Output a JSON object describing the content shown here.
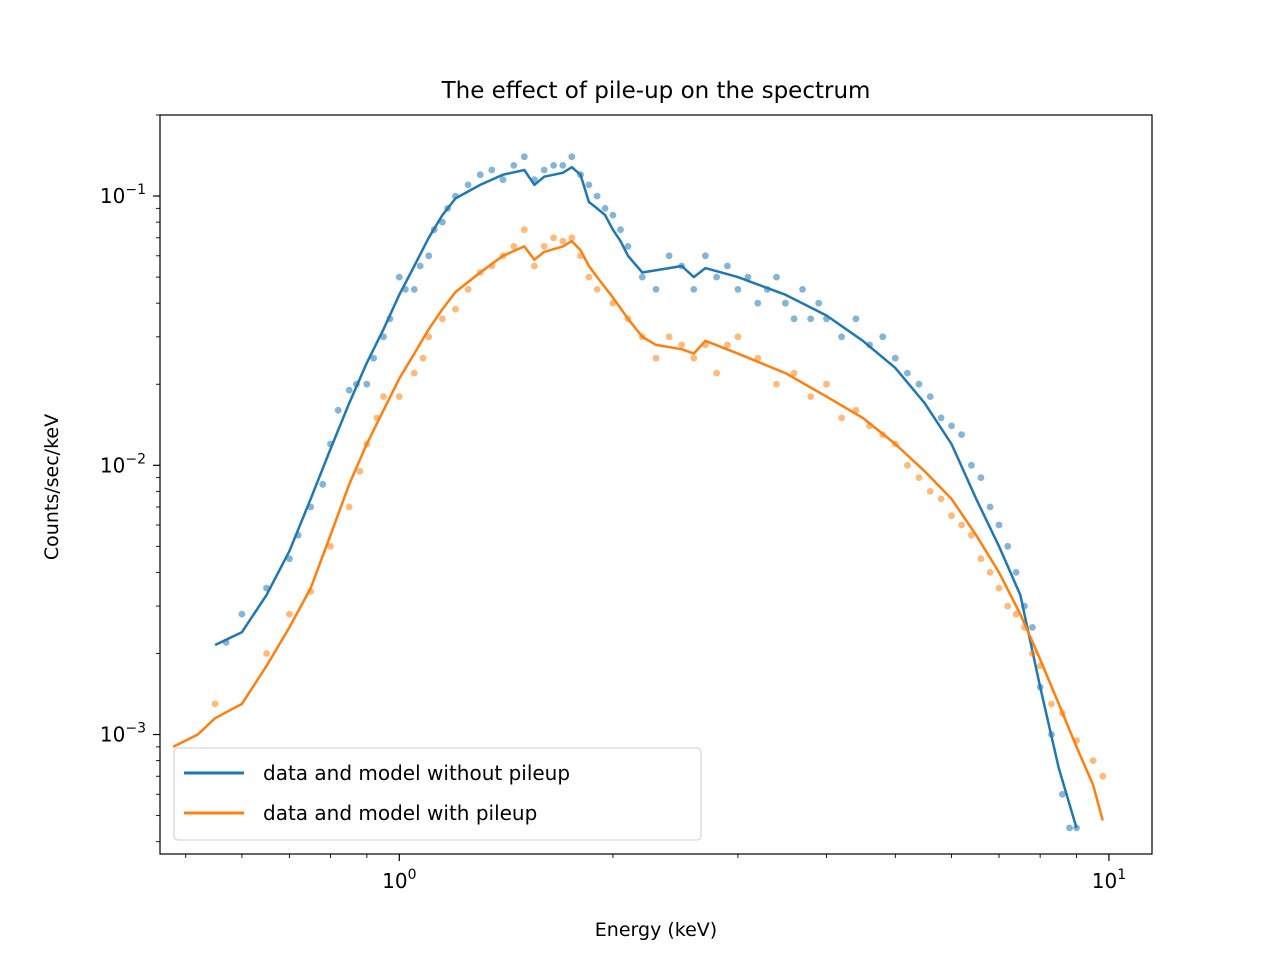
{
  "chart_data": {
    "type": "line",
    "title": "The effect of pile-up on the spectrum",
    "xlabel": "Energy (keV)",
    "ylabel": "Counts/sec/keV",
    "xscale": "log",
    "yscale": "log",
    "xlim": [
      0.46,
      11.5
    ],
    "ylim": [
      0.00036,
      0.2
    ],
    "x_ticks": [
      {
        "value": 1,
        "base": "10",
        "exp": "0"
      },
      {
        "value": 10,
        "base": "10",
        "exp": "1"
      }
    ],
    "y_ticks": [
      {
        "value": 0.001,
        "base": "10",
        "exp": "−3"
      },
      {
        "value": 0.01,
        "base": "10",
        "exp": "−2"
      },
      {
        "value": 0.1,
        "base": "10",
        "exp": "−1"
      }
    ],
    "grid": false,
    "legend_position": "lower-left",
    "series": [
      {
        "name": "data and model without pileup",
        "color": "#1f77b4",
        "model": [
          [
            0.55,
            0.00215
          ],
          [
            0.6,
            0.0024
          ],
          [
            0.65,
            0.0033
          ],
          [
            0.7,
            0.0048
          ],
          [
            0.75,
            0.0075
          ],
          [
            0.8,
            0.0115
          ],
          [
            0.85,
            0.017
          ],
          [
            0.9,
            0.024
          ],
          [
            0.95,
            0.032
          ],
          [
            1.0,
            0.043
          ],
          [
            1.05,
            0.055
          ],
          [
            1.1,
            0.07
          ],
          [
            1.15,
            0.085
          ],
          [
            1.2,
            0.098
          ],
          [
            1.3,
            0.11
          ],
          [
            1.4,
            0.12
          ],
          [
            1.5,
            0.125
          ],
          [
            1.55,
            0.11
          ],
          [
            1.6,
            0.118
          ],
          [
            1.7,
            0.122
          ],
          [
            1.75,
            0.128
          ],
          [
            1.8,
            0.12
          ],
          [
            1.85,
            0.095
          ],
          [
            1.9,
            0.09
          ],
          [
            1.95,
            0.085
          ],
          [
            2.0,
            0.075
          ],
          [
            2.05,
            0.068
          ],
          [
            2.1,
            0.06
          ],
          [
            2.2,
            0.052
          ],
          [
            2.4,
            0.054
          ],
          [
            2.5,
            0.055
          ],
          [
            2.6,
            0.05
          ],
          [
            2.7,
            0.054
          ],
          [
            3.0,
            0.05
          ],
          [
            3.5,
            0.043
          ],
          [
            4.0,
            0.036
          ],
          [
            4.5,
            0.029
          ],
          [
            5.0,
            0.023
          ],
          [
            5.5,
            0.017
          ],
          [
            6.0,
            0.012
          ],
          [
            6.5,
            0.0075
          ],
          [
            7.0,
            0.005
          ],
          [
            7.5,
            0.0033
          ],
          [
            8.0,
            0.0015
          ],
          [
            8.5,
            0.00075
          ],
          [
            9.0,
            0.00045
          ]
        ],
        "points": [
          [
            0.57,
            0.0022
          ],
          [
            0.6,
            0.0028
          ],
          [
            0.65,
            0.0035
          ],
          [
            0.7,
            0.0045
          ],
          [
            0.72,
            0.0055
          ],
          [
            0.75,
            0.007
          ],
          [
            0.78,
            0.0085
          ],
          [
            0.8,
            0.012
          ],
          [
            0.82,
            0.016
          ],
          [
            0.85,
            0.019
          ],
          [
            0.87,
            0.02
          ],
          [
            0.9,
            0.02
          ],
          [
            0.92,
            0.025
          ],
          [
            0.95,
            0.03
          ],
          [
            0.97,
            0.035
          ],
          [
            1.0,
            0.05
          ],
          [
            1.02,
            0.045
          ],
          [
            1.05,
            0.045
          ],
          [
            1.07,
            0.055
          ],
          [
            1.1,
            0.06
          ],
          [
            1.12,
            0.075
          ],
          [
            1.15,
            0.08
          ],
          [
            1.17,
            0.09
          ],
          [
            1.2,
            0.1
          ],
          [
            1.25,
            0.11
          ],
          [
            1.3,
            0.12
          ],
          [
            1.35,
            0.125
          ],
          [
            1.4,
            0.115
          ],
          [
            1.45,
            0.13
          ],
          [
            1.5,
            0.14
          ],
          [
            1.55,
            0.115
          ],
          [
            1.6,
            0.125
          ],
          [
            1.65,
            0.13
          ],
          [
            1.7,
            0.13
          ],
          [
            1.75,
            0.14
          ],
          [
            1.8,
            0.12
          ],
          [
            1.85,
            0.11
          ],
          [
            1.9,
            0.1
          ],
          [
            1.95,
            0.09
          ],
          [
            2.0,
            0.085
          ],
          [
            2.05,
            0.075
          ],
          [
            2.1,
            0.065
          ],
          [
            2.2,
            0.05
          ],
          [
            2.3,
            0.045
          ],
          [
            2.4,
            0.06
          ],
          [
            2.5,
            0.055
          ],
          [
            2.6,
            0.045
          ],
          [
            2.7,
            0.06
          ],
          [
            2.8,
            0.05
          ],
          [
            2.9,
            0.055
          ],
          [
            3.0,
            0.045
          ],
          [
            3.1,
            0.05
          ],
          [
            3.2,
            0.04
          ],
          [
            3.3,
            0.045
          ],
          [
            3.4,
            0.05
          ],
          [
            3.5,
            0.04
          ],
          [
            3.6,
            0.035
          ],
          [
            3.7,
            0.045
          ],
          [
            3.8,
            0.035
          ],
          [
            3.9,
            0.04
          ],
          [
            4.0,
            0.035
          ],
          [
            4.2,
            0.03
          ],
          [
            4.4,
            0.035
          ],
          [
            4.6,
            0.028
          ],
          [
            4.8,
            0.03
          ],
          [
            5.0,
            0.025
          ],
          [
            5.2,
            0.022
          ],
          [
            5.4,
            0.02
          ],
          [
            5.6,
            0.018
          ],
          [
            5.8,
            0.015
          ],
          [
            6.0,
            0.014
          ],
          [
            6.2,
            0.013
          ],
          [
            6.4,
            0.01
          ],
          [
            6.6,
            0.009
          ],
          [
            6.8,
            0.007
          ],
          [
            7.0,
            0.006
          ],
          [
            7.2,
            0.005
          ],
          [
            7.4,
            0.004
          ],
          [
            7.6,
            0.003
          ],
          [
            7.8,
            0.0025
          ],
          [
            8.0,
            0.0015
          ],
          [
            8.3,
            0.001
          ],
          [
            8.6,
            0.0006
          ],
          [
            8.8,
            0.00045
          ],
          [
            9.0,
            0.00045
          ]
        ]
      },
      {
        "name": "data and model with pileup",
        "color": "#ff7f0e",
        "model": [
          [
            0.48,
            0.0009
          ],
          [
            0.52,
            0.001
          ],
          [
            0.55,
            0.00115
          ],
          [
            0.6,
            0.0013
          ],
          [
            0.65,
            0.0018
          ],
          [
            0.7,
            0.0025
          ],
          [
            0.75,
            0.0035
          ],
          [
            0.8,
            0.0055
          ],
          [
            0.85,
            0.0085
          ],
          [
            0.9,
            0.012
          ],
          [
            0.95,
            0.016
          ],
          [
            1.0,
            0.021
          ],
          [
            1.05,
            0.026
          ],
          [
            1.1,
            0.032
          ],
          [
            1.15,
            0.038
          ],
          [
            1.2,
            0.044
          ],
          [
            1.3,
            0.052
          ],
          [
            1.4,
            0.06
          ],
          [
            1.5,
            0.065
          ],
          [
            1.55,
            0.058
          ],
          [
            1.6,
            0.062
          ],
          [
            1.7,
            0.065
          ],
          [
            1.75,
            0.068
          ],
          [
            1.8,
            0.063
          ],
          [
            1.85,
            0.055
          ],
          [
            1.9,
            0.05
          ],
          [
            2.0,
            0.042
          ],
          [
            2.1,
            0.035
          ],
          [
            2.2,
            0.03
          ],
          [
            2.3,
            0.028
          ],
          [
            2.5,
            0.027
          ],
          [
            2.6,
            0.026
          ],
          [
            2.7,
            0.029
          ],
          [
            3.0,
            0.026
          ],
          [
            3.5,
            0.022
          ],
          [
            4.0,
            0.018
          ],
          [
            4.5,
            0.015
          ],
          [
            5.0,
            0.012
          ],
          [
            5.5,
            0.0095
          ],
          [
            6.0,
            0.0075
          ],
          [
            6.5,
            0.0055
          ],
          [
            7.0,
            0.004
          ],
          [
            7.5,
            0.0028
          ],
          [
            8.0,
            0.0019
          ],
          [
            8.5,
            0.0013
          ],
          [
            9.0,
            0.0009
          ],
          [
            9.5,
            0.00065
          ],
          [
            9.8,
            0.00048
          ]
        ],
        "points": [
          [
            0.55,
            0.0013
          ],
          [
            0.65,
            0.002
          ],
          [
            0.7,
            0.0028
          ],
          [
            0.75,
            0.0034
          ],
          [
            0.8,
            0.005
          ],
          [
            0.85,
            0.007
          ],
          [
            0.88,
            0.0095
          ],
          [
            0.9,
            0.012
          ],
          [
            0.93,
            0.015
          ],
          [
            0.95,
            0.018
          ],
          [
            1.0,
            0.018
          ],
          [
            1.05,
            0.022
          ],
          [
            1.08,
            0.025
          ],
          [
            1.1,
            0.03
          ],
          [
            1.15,
            0.035
          ],
          [
            1.2,
            0.038
          ],
          [
            1.25,
            0.045
          ],
          [
            1.3,
            0.052
          ],
          [
            1.35,
            0.055
          ],
          [
            1.4,
            0.06
          ],
          [
            1.45,
            0.065
          ],
          [
            1.5,
            0.075
          ],
          [
            1.55,
            0.055
          ],
          [
            1.6,
            0.065
          ],
          [
            1.65,
            0.07
          ],
          [
            1.7,
            0.068
          ],
          [
            1.75,
            0.07
          ],
          [
            1.8,
            0.06
          ],
          [
            1.85,
            0.05
          ],
          [
            1.9,
            0.045
          ],
          [
            2.0,
            0.04
          ],
          [
            2.1,
            0.035
          ],
          [
            2.2,
            0.03
          ],
          [
            2.3,
            0.025
          ],
          [
            2.4,
            0.03
          ],
          [
            2.5,
            0.028
          ],
          [
            2.6,
            0.025
          ],
          [
            2.7,
            0.028
          ],
          [
            2.8,
            0.022
          ],
          [
            2.9,
            0.028
          ],
          [
            3.0,
            0.03
          ],
          [
            3.2,
            0.025
          ],
          [
            3.4,
            0.02
          ],
          [
            3.6,
            0.022
          ],
          [
            3.8,
            0.018
          ],
          [
            4.0,
            0.02
          ],
          [
            4.2,
            0.015
          ],
          [
            4.4,
            0.016
          ],
          [
            4.6,
            0.014
          ],
          [
            4.8,
            0.013
          ],
          [
            5.0,
            0.012
          ],
          [
            5.2,
            0.01
          ],
          [
            5.4,
            0.009
          ],
          [
            5.6,
            0.008
          ],
          [
            5.8,
            0.0075
          ],
          [
            6.0,
            0.0065
          ],
          [
            6.2,
            0.006
          ],
          [
            6.4,
            0.0055
          ],
          [
            6.6,
            0.0045
          ],
          [
            6.8,
            0.004
          ],
          [
            7.0,
            0.0035
          ],
          [
            7.2,
            0.003
          ],
          [
            7.4,
            0.0028
          ],
          [
            7.6,
            0.0025
          ],
          [
            7.8,
            0.002
          ],
          [
            8.0,
            0.0018
          ],
          [
            8.3,
            0.0013
          ],
          [
            8.6,
            0.0012
          ],
          [
            9.0,
            0.00095
          ],
          [
            9.5,
            0.0008
          ],
          [
            9.8,
            0.0007
          ]
        ]
      }
    ]
  }
}
